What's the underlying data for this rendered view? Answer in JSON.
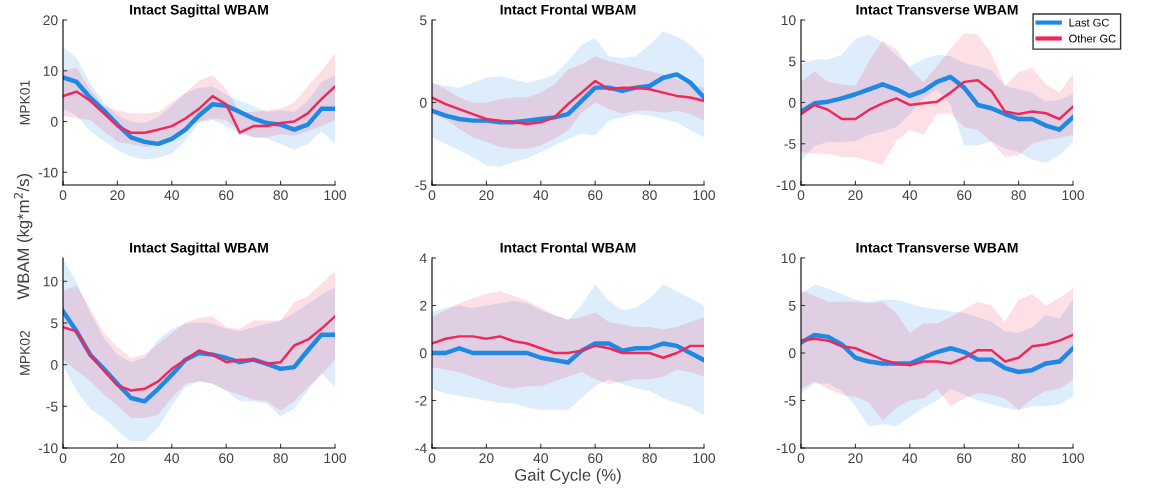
{
  "chart_data": [
    {
      "type": "line",
      "title": "Intact Sagittal WBAM",
      "ylabel": "MPK01",
      "annotations": [
        "WBAM (kg*m$^{2}$/s)"
      ],
      "x": [
        0,
        5,
        10,
        15,
        20,
        25,
        30,
        35,
        40,
        45,
        50,
        55,
        60,
        65,
        70,
        75,
        80,
        85,
        90,
        95,
        100
      ],
      "xlim": [
        0,
        100
      ],
      "xticks": [
        0,
        20,
        40,
        60,
        80,
        100
      ],
      "ylim": [
        -12.5,
        20
      ],
      "yticks": [
        -10,
        0,
        10,
        20
      ],
      "grid": false,
      "legend": false,
      "series": [
        {
          "color": "#1e88e5",
          "values": [
            8.7,
            7.8,
            4.7,
            2.2,
            -0.6,
            -3.1,
            -4,
            -4.4,
            -3.4,
            -1.6,
            1.2,
            3.4,
            3.1,
            1.9,
            0.6,
            -0.3,
            -0.6,
            -1.6,
            -0.6,
            2.5,
            2.5
          ],
          "upper": [
            14.7,
            12.5,
            7.5,
            3.8,
            1.2,
            0,
            -0.3,
            0.9,
            3.1,
            5.6,
            6.6,
            6.9,
            5.3,
            4.1,
            3.1,
            1.9,
            2.2,
            1.9,
            4.1,
            7.8,
            9.1
          ],
          "lower": [
            2.5,
            1.2,
            -1.9,
            -3.8,
            -5.6,
            -6.9,
            -7.5,
            -7.2,
            -6.3,
            -3.8,
            -0.3,
            0.3,
            -0.9,
            -2.5,
            -3.1,
            -3.4,
            -4.4,
            -5.6,
            -4.4,
            -1.9,
            -4.4
          ]
        },
        {
          "color": "#f0285a",
          "values": [
            5,
            5.9,
            4.1,
            1.6,
            -0.9,
            -2.2,
            -2.2,
            -1.6,
            -0.9,
            0.6,
            2.5,
            5,
            3.4,
            -2.2,
            -0.9,
            -0.9,
            -0.3,
            0,
            1.6,
            4.4,
            6.9
          ],
          "upper": [
            10,
            10.6,
            6.3,
            3.1,
            2.2,
            1.6,
            1.6,
            1.9,
            3.8,
            5.6,
            8.1,
            9.1,
            6.3,
            1.9,
            1.9,
            2.2,
            2.5,
            3.8,
            6.9,
            10,
            13.4
          ],
          "lower": [
            1.2,
            0.6,
            0.3,
            -1.9,
            -4,
            -4.4,
            -5,
            -4.7,
            -3.4,
            -1.2,
            0,
            0.6,
            0.3,
            -1.9,
            -3.1,
            -3.1,
            -2.5,
            -2.8,
            -1.9,
            -0.9,
            0.3
          ]
        }
      ]
    },
    {
      "type": "line",
      "title": "Intact Frontal WBAM",
      "x": [
        0,
        5,
        10,
        15,
        20,
        25,
        30,
        35,
        40,
        45,
        50,
        55,
        60,
        65,
        70,
        75,
        80,
        85,
        90,
        95,
        100
      ],
      "xlim": [
        0,
        100
      ],
      "xticks": [
        0,
        20,
        40,
        60,
        80,
        100
      ],
      "ylim": [
        -5,
        5
      ],
      "yticks": [
        -5,
        0,
        5
      ],
      "grid": false,
      "legend": false,
      "series": [
        {
          "color": "#1e88e5",
          "values": [
            -0.5,
            -0.8,
            -1,
            -1.1,
            -1.1,
            -1.2,
            -1.2,
            -1.1,
            -1,
            -0.9,
            -0.7,
            0.1,
            0.9,
            0.9,
            0.7,
            0.9,
            1,
            1.5,
            1.7,
            1.2,
            0.3
          ],
          "upper": [
            1.2,
            1,
            0.9,
            1.2,
            1.5,
            1.6,
            1.4,
            1.2,
            1.4,
            1.7,
            2.5,
            3.5,
            3.9,
            2.8,
            2.7,
            2.8,
            3.5,
            4.3,
            4,
            3.5,
            2.7
          ],
          "lower": [
            -2.1,
            -2.5,
            -2.9,
            -3.3,
            -3.8,
            -3.9,
            -3.6,
            -3.4,
            -3,
            -2.6,
            -2.2,
            -1.9,
            -2,
            -1.1,
            -0.9,
            -0.7,
            -0.8,
            -1,
            -1.2,
            -1.7,
            -2.1
          ]
        },
        {
          "color": "#f0285a",
          "values": [
            0.3,
            -0.1,
            -0.4,
            -0.7,
            -1,
            -1.1,
            -1.2,
            -1.3,
            -1.2,
            -0.9,
            -0.1,
            0.6,
            1.3,
            0.8,
            0.9,
            0.9,
            0.8,
            0.6,
            0.4,
            0.3,
            0.1
          ],
          "upper": [
            1.2,
            0.8,
            0.3,
            0,
            0,
            0.2,
            0.3,
            0.3,
            0.6,
            1.1,
            2,
            2.3,
            2.8,
            2.5,
            2.3,
            2.1,
            1.9,
            1.7,
            1.4,
            1.1,
            0.9
          ],
          "lower": [
            -0.7,
            -1,
            -1.6,
            -2.1,
            -2.4,
            -2.7,
            -2.8,
            -2.8,
            -2.6,
            -2.2,
            -1.7,
            -0.6,
            0,
            -0.4,
            -0.7,
            -0.5,
            -0.5,
            -0.6,
            -0.5,
            -0.7,
            -1.1
          ]
        }
      ]
    },
    {
      "type": "line",
      "title": "Intact Transverse WBAM",
      "x": [
        0,
        5,
        10,
        15,
        20,
        25,
        30,
        35,
        40,
        45,
        50,
        55,
        60,
        65,
        70,
        75,
        80,
        85,
        90,
        95,
        100
      ],
      "xlim": [
        0,
        100
      ],
      "xticks": [
        0,
        20,
        40,
        60,
        80,
        100
      ],
      "ylim": [
        -10,
        10
      ],
      "yticks": [
        -10,
        -5,
        0,
        5,
        10
      ],
      "grid": false,
      "legend": "top right",
      "series": [
        {
          "name": "Last GC",
          "color": "#1e88e5",
          "values": [
            -1.1,
            -0.1,
            0.1,
            0.5,
            1,
            1.6,
            2.2,
            1.6,
            0.8,
            1.4,
            2.5,
            3.1,
            1.8,
            -0.3,
            -0.7,
            -1.4,
            -2,
            -2,
            -2.8,
            -3.3,
            -1.8
          ],
          "upper": [
            4.6,
            5.2,
            5.2,
            5.8,
            7.7,
            8.2,
            7.3,
            5.7,
            4.4,
            5.2,
            5.8,
            5.6,
            4.8,
            4.4,
            3.9,
            2,
            1.6,
            1.2,
            0.1,
            0.3,
            1
          ],
          "lower": [
            -7.1,
            -5.2,
            -4.8,
            -4.8,
            -4.7,
            -3.9,
            -3.5,
            -3,
            -1.4,
            0.5,
            1.6,
            -0.3,
            -5.2,
            -5.2,
            -4.7,
            -5.6,
            -6,
            -6.9,
            -7.3,
            -6.4,
            -4.8
          ]
        },
        {
          "name": "Other GC",
          "color": "#f0285a",
          "values": [
            -1.4,
            -0.3,
            -0.9,
            -2,
            -2,
            -0.9,
            -0.1,
            0.5,
            -0.3,
            -0.1,
            0.1,
            1.2,
            2.5,
            2.7,
            1.4,
            -1.1,
            -1.4,
            -1.1,
            -1.3,
            -2,
            -0.5
          ],
          "upper": [
            2.5,
            3.8,
            2.5,
            2.2,
            2,
            5,
            7.5,
            6.5,
            4.1,
            2.5,
            4.4,
            6.5,
            8.4,
            8.2,
            5.9,
            2,
            3.7,
            4.2,
            2.2,
            1.2,
            3.5
          ],
          "lower": [
            -6,
            -6.2,
            -6.2,
            -6.6,
            -6.6,
            -7.1,
            -7.5,
            -4.7,
            -3.3,
            -3.9,
            -1.4,
            -1.3,
            -3,
            -3.3,
            -4.8,
            -6.6,
            -6.4,
            -5,
            -4.5,
            -4.3,
            -3.9
          ]
        }
      ]
    },
    {
      "type": "line",
      "title": "Intact Sagittal WBAM",
      "ylabel": "MPK02",
      "x": [
        0,
        5,
        10,
        15,
        20,
        25,
        30,
        35,
        40,
        45,
        50,
        55,
        60,
        65,
        70,
        75,
        80,
        85,
        90,
        95,
        100
      ],
      "xlim": [
        0,
        100
      ],
      "xticks": [
        0,
        20,
        40,
        60,
        80,
        100
      ],
      "ylim": [
        -10,
        12.8
      ],
      "yticks": [
        -10,
        -5,
        0,
        5,
        10
      ],
      "grid": false,
      "legend": false,
      "series": [
        {
          "color": "#1e88e5",
          "values": [
            6.4,
            4,
            1.2,
            -0.5,
            -2.3,
            -4,
            -4.4,
            -2.9,
            -1.2,
            0.6,
            1.4,
            1.2,
            0.8,
            0.3,
            0.6,
            0.1,
            -0.5,
            -0.3,
            1.7,
            3.6,
            3.6
          ],
          "upper": [
            12.7,
            9.9,
            6.2,
            3.2,
            1.2,
            0.3,
            0.8,
            3,
            4.3,
            4.9,
            5.1,
            4.9,
            4.3,
            4,
            4.5,
            4.9,
            5.3,
            6.2,
            7.3,
            8.4,
            9.3
          ],
          "lower": [
            -0.1,
            -3.1,
            -5.3,
            -6.4,
            -7.9,
            -9.2,
            -9.2,
            -7.5,
            -4.9,
            -2.7,
            -2,
            -2.3,
            -3.1,
            -4.4,
            -4.4,
            -4.7,
            -6.2,
            -5.3,
            -3.1,
            -1,
            -2.7
          ]
        },
        {
          "color": "#f0285a",
          "values": [
            4.5,
            4,
            1.2,
            -0.7,
            -2.5,
            -3.1,
            -2.9,
            -2,
            -0.5,
            0.6,
            1.7,
            1.2,
            0.3,
            0.6,
            0.6,
            0.1,
            0.3,
            2.3,
            3,
            4.3,
            5.8
          ],
          "upper": [
            8.8,
            9.5,
            6.7,
            3.8,
            2.1,
            0.8,
            1.2,
            2.5,
            3.8,
            5.1,
            5.6,
            5.8,
            4.5,
            4.3,
            5.3,
            5.3,
            5.3,
            7.5,
            8.2,
            9.7,
            11.2
          ],
          "lower": [
            0.6,
            -0.7,
            -2,
            -3.6,
            -4.9,
            -6.4,
            -6.4,
            -6,
            -4,
            -2.3,
            -2,
            -2.3,
            -3.1,
            -3.6,
            -4.2,
            -4.4,
            -5.5,
            -4.4,
            -2.7,
            -1.2,
            0.6
          ]
        }
      ]
    },
    {
      "type": "line",
      "title": "Intact Frontal WBAM",
      "xlabel": "Gait Cycle (%)",
      "x": [
        0,
        5,
        10,
        15,
        20,
        25,
        30,
        35,
        40,
        45,
        50,
        55,
        60,
        65,
        70,
        75,
        80,
        85,
        90,
        95,
        100
      ],
      "xlim": [
        0,
        100
      ],
      "xticks": [
        0,
        20,
        40,
        60,
        80,
        100
      ],
      "ylim": [
        -4,
        4
      ],
      "yticks": [
        -4,
        -2,
        0,
        2,
        4
      ],
      "grid": false,
      "legend": false,
      "series": [
        {
          "color": "#1e88e5",
          "values": [
            0,
            0,
            0.2,
            0,
            0,
            0,
            0,
            0,
            -0.2,
            -0.3,
            -0.4,
            0.1,
            0.4,
            0.4,
            0.1,
            0.2,
            0.2,
            0.4,
            0.3,
            0,
            -0.3
          ],
          "upper": [
            1.7,
            1.9,
            2,
            1.9,
            2,
            2.1,
            2.2,
            2.1,
            1.8,
            1.6,
            1.4,
            2,
            2.9,
            2.2,
            1.8,
            1.9,
            2.3,
            2.9,
            2.6,
            2.3,
            2
          ],
          "lower": [
            -1.5,
            -1.7,
            -1.8,
            -1.9,
            -2,
            -2.1,
            -2.1,
            -2.3,
            -2.4,
            -2.4,
            -2.4,
            -1.9,
            -1.4,
            -1.1,
            -1.3,
            -1.5,
            -1.6,
            -1.9,
            -2.1,
            -2.3,
            -2.6
          ]
        },
        {
          "color": "#f0285a",
          "values": [
            0.4,
            0.6,
            0.7,
            0.7,
            0.6,
            0.7,
            0.5,
            0.4,
            0.2,
            0,
            0,
            0.1,
            0.3,
            0.2,
            0,
            0,
            0,
            -0.2,
            0,
            0.3,
            0.3
          ],
          "upper": [
            1.5,
            1.8,
            2.1,
            2.3,
            2.5,
            2.6,
            2.4,
            2.2,
            1.9,
            1.6,
            1.4,
            1.5,
            1.7,
            1.3,
            1.2,
            1.1,
            1.1,
            1,
            1.1,
            1.3,
            1.5
          ],
          "lower": [
            -0.6,
            -0.7,
            -0.8,
            -1,
            -1.2,
            -1.4,
            -1.5,
            -1.4,
            -1.4,
            -1.2,
            -1,
            -0.8,
            -1.1,
            -1.3,
            -1.2,
            -1.1,
            -1.1,
            -1,
            -0.7,
            -0.8,
            -1
          ]
        }
      ]
    },
    {
      "type": "line",
      "title": "Intact Transverse WBAM",
      "x": [
        0,
        5,
        10,
        15,
        20,
        25,
        30,
        35,
        40,
        45,
        50,
        55,
        60,
        65,
        70,
        75,
        80,
        85,
        90,
        95,
        100
      ],
      "xlim": [
        0,
        100
      ],
      "xticks": [
        0,
        20,
        40,
        60,
        80,
        100
      ],
      "ylim": [
        -10,
        10
      ],
      "yticks": [
        -10,
        -5,
        0,
        5,
        10
      ],
      "grid": false,
      "legend": false,
      "series": [
        {
          "color": "#1e88e5",
          "values": [
            1.1,
            1.9,
            1.7,
            0.9,
            -0.5,
            -0.9,
            -1.1,
            -1.1,
            -1.1,
            -0.5,
            0.1,
            0.5,
            0.1,
            -0.7,
            -0.7,
            -1.6,
            -2,
            -1.8,
            -1.1,
            -0.9,
            0.5
          ],
          "upper": [
            6.2,
            7.2,
            6.8,
            6.2,
            5.6,
            5.4,
            5.6,
            5.6,
            5.2,
            4.8,
            4.6,
            4.4,
            4.2,
            3.8,
            3.3,
            2.3,
            2.1,
            2.7,
            4,
            3.6,
            5.6
          ],
          "lower": [
            -4.2,
            -3.2,
            -3.2,
            -4,
            -5.6,
            -7.7,
            -7.5,
            -7.7,
            -6.7,
            -5.8,
            -5,
            -3.8,
            -4.4,
            -5,
            -5.4,
            -5.8,
            -6,
            -5.6,
            -5.6,
            -5.4,
            -4.6
          ]
        },
        {
          "color": "#f0285a",
          "values": [
            1.3,
            1.5,
            1.3,
            0.7,
            0.5,
            -0.1,
            -0.7,
            -1.1,
            -1.3,
            -0.9,
            -0.9,
            -1.1,
            -0.5,
            0.3,
            0.3,
            -0.9,
            -0.5,
            0.7,
            0.9,
            1.3,
            1.9
          ],
          "upper": [
            6.6,
            6,
            5.4,
            5.4,
            5.4,
            5.2,
            5.4,
            4.2,
            2.1,
            3.1,
            3.1,
            3.8,
            4.6,
            5.4,
            5,
            3.3,
            5.6,
            6.2,
            5,
            5.8,
            6.8
          ],
          "lower": [
            -3.8,
            -3,
            -3.8,
            -4.4,
            -4.6,
            -5.2,
            -7.1,
            -5.8,
            -5,
            -4.8,
            -3.8,
            -5.6,
            -4.8,
            -4.2,
            -4.4,
            -4.8,
            -6,
            -4.8,
            -4,
            -3.8,
            -2.8
          ]
        }
      ]
    }
  ]
}
